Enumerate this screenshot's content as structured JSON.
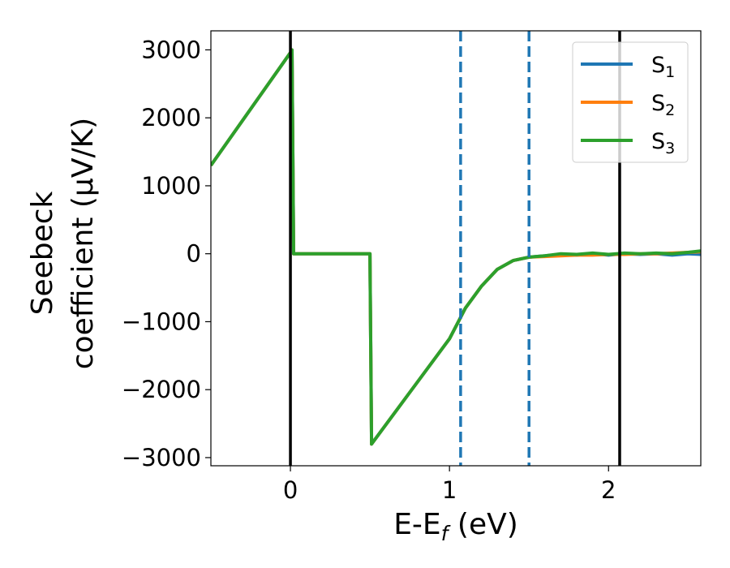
{
  "chart_data": {
    "type": "line",
    "xlabel": "E-E_f (eV)",
    "xlabel_main": "E-E",
    "xlabel_sub": "f",
    "xlabel_unit": " (eV)",
    "ylabel_line1": "Seebeck",
    "ylabel_line2": "coefficient  (μV/K)",
    "xlim": [
      -0.5,
      2.58
    ],
    "ylim": [
      -3120,
      3280
    ],
    "xticks": [
      0,
      1,
      2
    ],
    "xtick_labels": [
      "0",
      "1",
      "2"
    ],
    "yticks": [
      3000,
      2000,
      1000,
      0,
      -1000,
      -2000,
      -3000
    ],
    "ytick_labels": [
      "3000",
      "2000",
      "1000",
      "0",
      "−1000",
      "−2000",
      "−3000"
    ],
    "legend_position": "upper right",
    "vlines": [
      {
        "x": 0.0,
        "style": "solid",
        "color": "#000000"
      },
      {
        "x": 1.07,
        "style": "dashed",
        "color": "#1f77b4"
      },
      {
        "x": 1.5,
        "style": "dashed",
        "color": "#1f77b4"
      },
      {
        "x": 2.07,
        "style": "solid",
        "color": "#000000"
      }
    ],
    "series": [
      {
        "name": "S_1",
        "label_main": "S",
        "label_sub": "1",
        "color": "#1f77b4",
        "x": [
          -0.5,
          0.0,
          0.01,
          0.02,
          0.5,
          0.51,
          1.0,
          1.1,
          1.2,
          1.3,
          1.4,
          1.5,
          1.6,
          1.7,
          1.8,
          1.9,
          2.0,
          2.1,
          2.2,
          2.3,
          2.4,
          2.5,
          2.58
        ],
        "y": [
          1300,
          2960,
          3000,
          0,
          0,
          -2800,
          -1250,
          -800,
          -480,
          -230,
          -100,
          -50,
          -30,
          -10,
          -20,
          0,
          -20,
          0,
          -10,
          0,
          -20,
          0,
          -10
        ]
      },
      {
        "name": "S_2",
        "label_main": "S",
        "label_sub": "2",
        "color": "#ff7f0e",
        "x": [
          -0.5,
          0.0,
          0.01,
          0.02,
          0.5,
          0.51,
          1.0,
          1.1,
          1.2,
          1.3,
          1.4,
          1.5,
          1.6,
          1.7,
          1.8,
          1.9,
          2.0,
          2.1,
          2.2,
          2.3,
          2.4,
          2.5,
          2.58
        ],
        "y": [
          1300,
          2960,
          3000,
          0,
          0,
          -2800,
          -1250,
          -800,
          -480,
          -230,
          -100,
          -50,
          -40,
          -30,
          -20,
          -20,
          -10,
          -10,
          0,
          0,
          10,
          20,
          30
        ]
      },
      {
        "name": "S_3",
        "label_main": "S",
        "label_sub": "3",
        "color": "#2ca02c",
        "x": [
          -0.5,
          0.0,
          0.01,
          0.02,
          0.5,
          0.51,
          1.0,
          1.1,
          1.2,
          1.3,
          1.4,
          1.5,
          1.6,
          1.7,
          1.8,
          1.9,
          2.0,
          2.1,
          2.2,
          2.3,
          2.4,
          2.5,
          2.58
        ],
        "y": [
          1300,
          2960,
          3000,
          0,
          0,
          -2800,
          -1250,
          -800,
          -480,
          -230,
          -100,
          -50,
          -30,
          0,
          -10,
          10,
          -10,
          10,
          0,
          10,
          0,
          20,
          40
        ]
      }
    ]
  }
}
